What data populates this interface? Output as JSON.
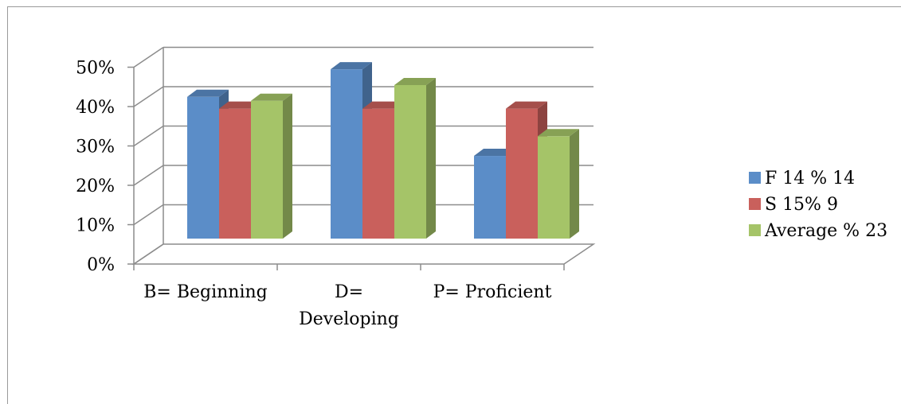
{
  "chart_data": {
    "type": "bar",
    "style": "3d-clustered-column",
    "categories": [
      [
        "B= Beginning"
      ],
      [
        "D=",
        "Developing"
      ],
      [
        "P= Proficient"
      ]
    ],
    "series": [
      {
        "name": "F 14 % 14",
        "color": "#5b8dc8",
        "values": [
          36,
          43,
          21
        ]
      },
      {
        "name": "S 15% 9",
        "color": "#c9605c",
        "values": [
          33,
          33,
          33
        ]
      },
      {
        "name": "Average % 23",
        "color": "#a5c468",
        "values": [
          35,
          39,
          26
        ]
      }
    ],
    "yticks": [
      "0%",
      "10%",
      "20%",
      "30%",
      "40%",
      "50%"
    ],
    "ylim": [
      0,
      50
    ],
    "grid": true,
    "legend_position": "right"
  }
}
